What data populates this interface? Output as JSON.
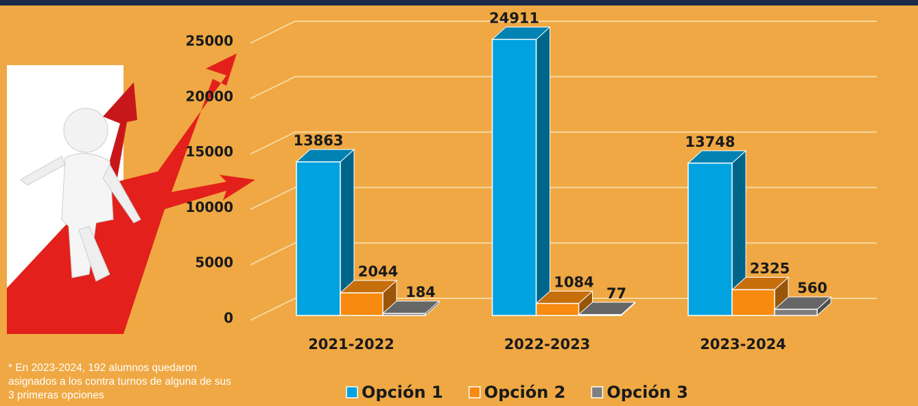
{
  "chart_data": {
    "type": "bar3d",
    "categories": [
      "2021-2022",
      "2022-2023",
      "2023-2024"
    ],
    "series": [
      {
        "name": "Opción 1",
        "color": "#00a3e0",
        "values": [
          13863,
          24911,
          13748
        ]
      },
      {
        "name": "Opción 2",
        "color": "#f78a0f",
        "values": [
          2044,
          1084,
          2325
        ]
      },
      {
        "name": "Opción 3",
        "color": "#7f7f7f",
        "values": [
          184,
          77,
          560
        ]
      }
    ],
    "ylim": [
      0,
      25000
    ],
    "yticks": [
      0,
      5000,
      10000,
      15000,
      20000,
      25000
    ],
    "grid": true,
    "note": "* En 2023-2024, 192 alumnos quedaron asignados a los contra turnos de alguna de sus 3 primeras opciones"
  }
}
